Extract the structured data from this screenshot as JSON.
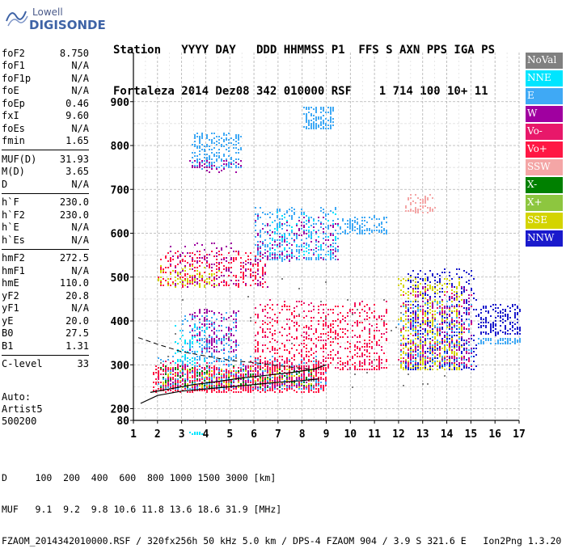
{
  "logo": {
    "top": "Lowell",
    "bottom": "DIGISONDE"
  },
  "header": {
    "line1": "Station   YYYY DAY   DDD HHMMSS P1  FFS S AXN PPS IGA PS",
    "line2": "Fortaleza 2014 Dez08 342 010000 RSF    1 714 100 10+ 11"
  },
  "params_groups": [
    [
      [
        "foF2",
        "8.750"
      ],
      [
        "foF1",
        "N/A"
      ],
      [
        "foF1p",
        "N/A"
      ],
      [
        "foE",
        "N/A"
      ],
      [
        "foEp",
        "0.46"
      ],
      [
        "fxI",
        "9.60"
      ],
      [
        "foEs",
        "N/A"
      ],
      [
        "fmin",
        "1.65"
      ]
    ],
    [
      [
        "MUF(D)",
        "31.93"
      ],
      [
        "M(D)",
        "3.65"
      ],
      [
        "D",
        "N/A"
      ]
    ],
    [
      [
        "h`F",
        "230.0"
      ],
      [
        "h`F2",
        "230.0"
      ],
      [
        "h`E",
        "N/A"
      ],
      [
        "h`Es",
        "N/A"
      ]
    ],
    [
      [
        "hmF2",
        "272.5"
      ],
      [
        "hmF1",
        "N/A"
      ],
      [
        "hmE",
        "110.0"
      ],
      [
        "yF2",
        "20.8"
      ],
      [
        "yF1",
        "N/A"
      ],
      [
        "yE",
        "20.0"
      ],
      [
        "B0",
        "27.5"
      ],
      [
        "B1",
        "1.31"
      ]
    ],
    [
      [
        "C-level",
        "33"
      ]
    ]
  ],
  "auto": {
    "line1": "Auto:",
    "line2": "Artist5",
    "line3": "500200"
  },
  "legend": [
    {
      "label": "NoVal",
      "color": "#808080"
    },
    {
      "label": "NNE",
      "color": "#00e5ff"
    },
    {
      "label": "E",
      "color": "#3fa9f5"
    },
    {
      "label": "W",
      "color": "#a000a0"
    },
    {
      "label": "Vo-",
      "color": "#e8186a"
    },
    {
      "label": "Vo+",
      "color": "#ff1744"
    },
    {
      "label": "SSW",
      "color": "#f4a6a6"
    },
    {
      "label": "X-",
      "color": "#008000"
    },
    {
      "label": "X+",
      "color": "#8dc63f"
    },
    {
      "label": "SSE",
      "color": "#d4d400"
    },
    {
      "label": "NNW",
      "color": "#1a1acc"
    }
  ],
  "chart_data": {
    "type": "scatter",
    "xlim": [
      1,
      17
    ],
    "ylim": [
      80,
      900
    ],
    "x_ticks": [
      1,
      2,
      3,
      4,
      5,
      6,
      7,
      8,
      9,
      10,
      11,
      12,
      13,
      14,
      15,
      16,
      17
    ],
    "y_ticks": [
      80,
      200,
      300,
      400,
      500,
      600,
      700,
      800,
      900
    ],
    "grid": true,
    "legend_position": "right",
    "profile_curve": [
      [
        1.3,
        212
      ],
      [
        2,
        230
      ],
      [
        3,
        240
      ],
      [
        4,
        245
      ],
      [
        5,
        250
      ],
      [
        6,
        255
      ],
      [
        7,
        260
      ],
      [
        8,
        264
      ],
      [
        8.7,
        268
      ]
    ],
    "virtual_curve": [
      [
        1.7,
        237
      ],
      [
        2.5,
        245
      ],
      [
        3.5,
        255
      ],
      [
        4.5,
        262
      ],
      [
        5.5,
        270
      ],
      [
        6.5,
        276
      ],
      [
        7.5,
        282
      ],
      [
        8.5,
        290
      ],
      [
        9,
        300
      ]
    ],
    "dashed_curve": [
      [
        1.2,
        362
      ],
      [
        2,
        347
      ],
      [
        3,
        330
      ],
      [
        4,
        320
      ],
      [
        5,
        310
      ],
      [
        6,
        305
      ],
      [
        7,
        298
      ],
      [
        8,
        292
      ],
      [
        8.6,
        290
      ]
    ],
    "clusters": [
      {
        "color": "#ff1744",
        "x": [
          1.8,
          9
        ],
        "y": [
          240,
          300
        ],
        "n": 700
      },
      {
        "color": "#e8186a",
        "x": [
          2,
          9
        ],
        "y": [
          245,
          310
        ],
        "n": 300
      },
      {
        "color": "#3fa9f5",
        "x": [
          2,
          9
        ],
        "y": [
          245,
          320
        ],
        "n": 260
      },
      {
        "color": "#a000a0",
        "x": [
          2,
          8.5
        ],
        "y": [
          250,
          300
        ],
        "n": 160
      },
      {
        "color": "#008000",
        "x": [
          2,
          8.5
        ],
        "y": [
          250,
          300
        ],
        "n": 110
      },
      {
        "color": "#d4d400",
        "x": [
          2,
          8.5
        ],
        "y": [
          250,
          295
        ],
        "n": 90
      },
      {
        "color": "#ff1744",
        "x": [
          6,
          11.5
        ],
        "y": [
          290,
          440
        ],
        "n": 450
      },
      {
        "color": "#e8186a",
        "x": [
          6,
          11.5
        ],
        "y": [
          290,
          450
        ],
        "n": 260
      },
      {
        "color": "#a000a0",
        "x": [
          3.3,
          5.3
        ],
        "y": [
          330,
          430
        ],
        "n": 170
      },
      {
        "color": "#3fa9f5",
        "x": [
          3,
          5.3
        ],
        "y": [
          310,
          420
        ],
        "n": 150
      },
      {
        "color": "#00e5ff",
        "x": [
          2.7,
          4
        ],
        "y": [
          300,
          390
        ],
        "n": 60
      },
      {
        "color": "#d4d400",
        "x": [
          12,
          14.6
        ],
        "y": [
          290,
          500
        ],
        "n": 620
      },
      {
        "color": "#1a1acc",
        "x": [
          12.3,
          15.2
        ],
        "y": [
          290,
          520
        ],
        "n": 380
      },
      {
        "color": "#a000a0",
        "x": [
          12.3,
          15
        ],
        "y": [
          300,
          480
        ],
        "n": 200
      },
      {
        "color": "#3fa9f5",
        "x": [
          12,
          15
        ],
        "y": [
          300,
          450
        ],
        "n": 160
      },
      {
        "color": "#e8186a",
        "x": [
          12,
          15
        ],
        "y": [
          300,
          470
        ],
        "n": 120
      },
      {
        "color": "#1a1acc",
        "x": [
          15.3,
          17
        ],
        "y": [
          370,
          440
        ],
        "n": 180
      },
      {
        "color": "#3fa9f5",
        "x": [
          15.3,
          17
        ],
        "y": [
          350,
          365
        ],
        "n": 70
      },
      {
        "color": "#ff1744",
        "x": [
          2,
          6.5
        ],
        "y": [
          480,
          560
        ],
        "n": 260
      },
      {
        "color": "#a000a0",
        "x": [
          2.5,
          6.5
        ],
        "y": [
          480,
          580
        ],
        "n": 140
      },
      {
        "color": "#d4d400",
        "x": [
          2,
          4.5
        ],
        "y": [
          480,
          530
        ],
        "n": 80
      },
      {
        "color": "#3fa9f5",
        "x": [
          6,
          9.5
        ],
        "y": [
          540,
          660
        ],
        "n": 320
      },
      {
        "color": "#00e5ff",
        "x": [
          6.5,
          9.5
        ],
        "y": [
          550,
          650
        ],
        "n": 80
      },
      {
        "color": "#a000a0",
        "x": [
          6,
          9.5
        ],
        "y": [
          540,
          640
        ],
        "n": 120
      },
      {
        "color": "#3fa9f5",
        "x": [
          9.5,
          11.5
        ],
        "y": [
          600,
          640
        ],
        "n": 120
      },
      {
        "color": "#3fa9f5",
        "x": [
          3.4,
          5.4
        ],
        "y": [
          750,
          830
        ],
        "n": 220
      },
      {
        "color": "#a000a0",
        "x": [
          3.3,
          5.4
        ],
        "y": [
          740,
          770
        ],
        "n": 40
      },
      {
        "color": "#3fa9f5",
        "x": [
          8,
          9.3
        ],
        "y": [
          840,
          890
        ],
        "n": 150
      },
      {
        "color": "#f4a6a6",
        "x": [
          12.2,
          13.5
        ],
        "y": [
          650,
          690
        ],
        "n": 60
      },
      {
        "color": "#00e5ff",
        "x": [
          3.3,
          3.8
        ],
        "y": [
          142,
          148
        ],
        "n": 20
      },
      {
        "color": "#808080",
        "x": [
          2,
          14
        ],
        "y": [
          250,
          500
        ],
        "n": 60
      }
    ]
  },
  "footer": {
    "line1": "D     100  200  400  600  800 1000 1500 3000 [km]",
    "line2": "MUF   9.1  9.2  9.8 10.6 11.8 13.6 18.6 31.9 [MHz]",
    "line3": "FZAOM_2014342010000.RSF / 320fx256h 50 kHz 5.0 km / DPS-4 FZAOM 904 / 3.9 S 321.6 E   Ion2Png 1.3.20"
  }
}
